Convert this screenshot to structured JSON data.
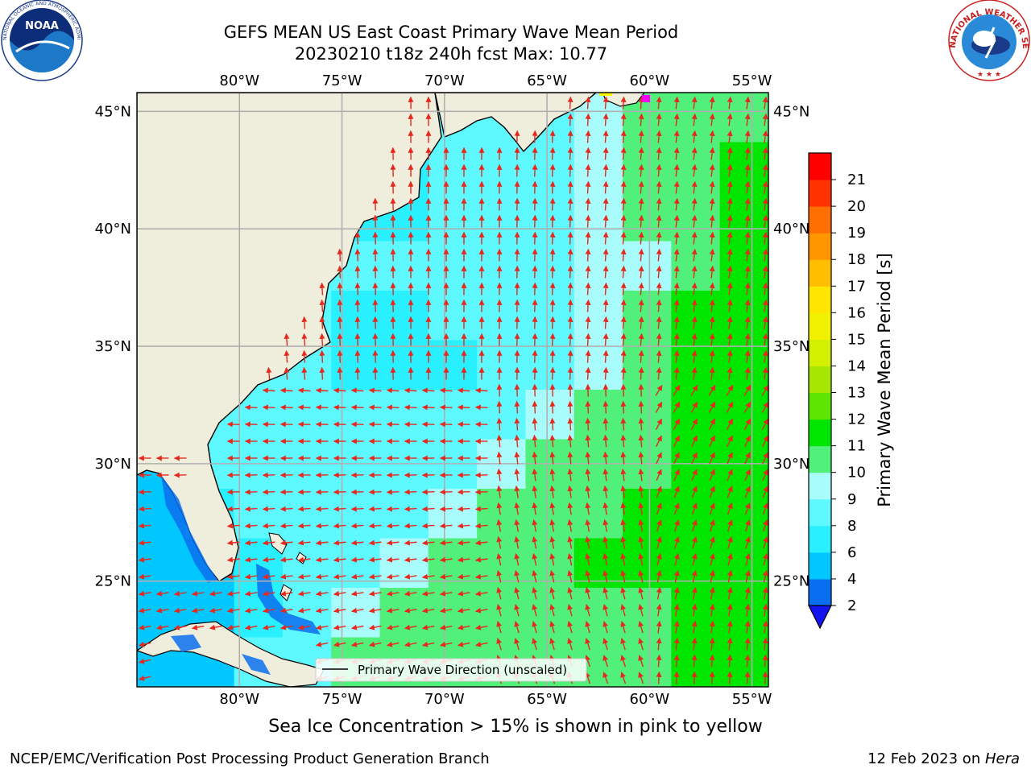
{
  "title": {
    "line1": "GEFS MEAN US East Coast Primary Wave Mean Period",
    "line2": "20230210 t18z 240h fcst   Max: 10.77"
  },
  "logos": {
    "noaa_text": "NOAA",
    "noaa_ring": "NATIONAL OCEANIC AND ATMOSPHERIC ADMINISTRATION · U.S. DEPARTMENT OF COMMERCE",
    "nws_ring": "NATIONAL WEATHER SERVICE"
  },
  "map": {
    "lon_labels": [
      "80°W",
      "75°W",
      "70°W",
      "65°W",
      "60°W",
      "55°W"
    ],
    "lat_labels": [
      "45°N",
      "40°N",
      "35°N",
      "30°N",
      "25°N"
    ],
    "legend_label": "Primary Wave Direction (unscaled)",
    "colors": {
      "land": "#efeedc",
      "arrow": "#e8281c",
      "grid": "#b0b0b0"
    },
    "period_field_s": [
      [
        7,
        7,
        7,
        7,
        7,
        7,
        7,
        7,
        7,
        8,
        9,
        9,
        9
      ],
      [
        7,
        6,
        6,
        6,
        6,
        6,
        7,
        7,
        7,
        8,
        9,
        9,
        10
      ],
      [
        7,
        6,
        6,
        6,
        6,
        6,
        7,
        7,
        7,
        8,
        9,
        9,
        10
      ],
      [
        7,
        6,
        7,
        7,
        7,
        7,
        7,
        7,
        7,
        8,
        8,
        9,
        10
      ],
      [
        6,
        7,
        7,
        7,
        6,
        6,
        7,
        7,
        7,
        8,
        9,
        10,
        10
      ],
      [
        6,
        7,
        7,
        7,
        6,
        6,
        6,
        7,
        7,
        8,
        9,
        10,
        10
      ],
      [
        6,
        7,
        7,
        7,
        7,
        7,
        7,
        7,
        8,
        9,
        9,
        10,
        10
      ],
      [
        5,
        7,
        7,
        7,
        7,
        7,
        7,
        8,
        9,
        9,
        9,
        10,
        10
      ],
      [
        5,
        6,
        7,
        7,
        7,
        7,
        8,
        9,
        9,
        9,
        10,
        10,
        10
      ],
      [
        5,
        5,
        6,
        7,
        7,
        8,
        9,
        9,
        9,
        10,
        10,
        10,
        10
      ],
      [
        5,
        5,
        6,
        7,
        8,
        9,
        9,
        9,
        9,
        9,
        9,
        10,
        10
      ],
      [
        5,
        5,
        7,
        7,
        9,
        9,
        9,
        9,
        9,
        9,
        9,
        10,
        10
      ]
    ]
  },
  "colorbar": {
    "label": "Primary Wave Mean Period [s]",
    "ticks": [
      "2",
      "4",
      "6",
      "8",
      "9",
      "10",
      "11",
      "12",
      "13",
      "14",
      "15",
      "16",
      "17",
      "18",
      "19",
      "20",
      "21"
    ],
    "levels": [
      2,
      4,
      6,
      7,
      8,
      9,
      10,
      11,
      12,
      13,
      14,
      15,
      16,
      17,
      18,
      19,
      20,
      21
    ],
    "colors": [
      "#0a6ef0",
      "#00c8ff",
      "#28f0ff",
      "#5ef8ff",
      "#a8fcfc",
      "#50f07a",
      "#00e600",
      "#5ce600",
      "#a6e600",
      "#d2f000",
      "#f0f000",
      "#ffe600",
      "#ffbe00",
      "#ff9600",
      "#ff6e00",
      "#ff3200",
      "#ff0000"
    ],
    "under_color": "#1414f0"
  },
  "caption": "Sea Ice Concentration > 15% is shown in pink to yellow",
  "footer": {
    "left": "NCEP/EMC/Verification Post Processing Product Generation Branch",
    "right_date": "12 Feb 2023 on ",
    "right_host": "Hera"
  }
}
